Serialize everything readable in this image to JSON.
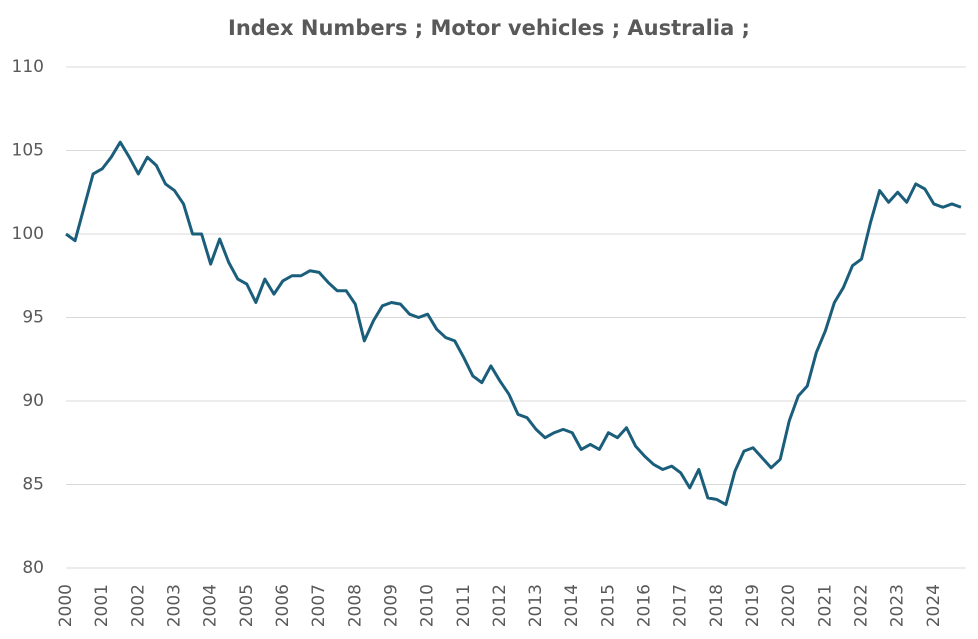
{
  "chart_data": {
    "type": "line",
    "title": "Index Numbers ;  Motor vehicles ;  Australia ;",
    "categories": [
      "2000",
      null,
      null,
      null,
      "2001",
      null,
      null,
      null,
      "2002",
      null,
      null,
      null,
      "2003",
      null,
      null,
      null,
      "2004",
      null,
      null,
      null,
      "2005",
      null,
      null,
      null,
      "2006",
      null,
      null,
      null,
      "2007",
      null,
      null,
      null,
      "2008",
      null,
      null,
      null,
      "2009",
      null,
      null,
      null,
      "2010",
      null,
      null,
      null,
      "2011",
      null,
      null,
      null,
      "2012",
      null,
      null,
      null,
      "2013",
      null,
      null,
      null,
      "2014",
      null,
      null,
      null,
      "2015",
      null,
      null,
      null,
      "2016",
      null,
      null,
      null,
      "2017",
      null,
      null,
      null,
      "2018",
      null,
      null,
      null,
      "2019",
      null,
      null,
      null,
      "2020",
      null,
      null,
      null,
      "2021",
      null,
      null,
      null,
      "2022",
      null,
      null,
      null,
      "2023",
      null,
      null,
      null,
      "2024",
      null,
      null,
      null
    ],
    "series": [
      {
        "name": "Motor vehicles",
        "color": "#1b5e7b",
        "values": [
          100.0,
          99.6,
          101.6,
          103.6,
          103.9,
          104.6,
          105.5,
          104.6,
          103.6,
          104.6,
          104.1,
          103.0,
          102.6,
          101.8,
          100.0,
          100.0,
          98.2,
          99.7,
          98.3,
          97.3,
          97.0,
          95.9,
          97.3,
          96.4,
          97.2,
          97.5,
          97.5,
          97.8,
          97.7,
          97.1,
          96.6,
          96.6,
          95.8,
          93.6,
          94.8,
          95.7,
          95.9,
          95.8,
          95.2,
          95.0,
          95.2,
          94.3,
          93.8,
          93.6,
          92.6,
          91.5,
          91.1,
          92.1,
          91.2,
          90.4,
          89.2,
          89.0,
          88.3,
          87.8,
          88.1,
          88.3,
          88.1,
          87.1,
          87.4,
          87.1,
          88.1,
          87.8,
          88.4,
          87.3,
          86.7,
          86.2,
          85.9,
          86.1,
          85.7,
          84.8,
          85.9,
          84.2,
          84.1,
          83.8,
          85.8,
          87.0,
          87.2,
          86.6,
          86.0,
          86.5,
          88.8,
          90.3,
          90.9,
          92.9,
          94.2,
          95.9,
          96.8,
          98.1,
          98.5,
          100.7,
          102.6,
          101.9,
          102.5,
          101.9,
          103.0,
          102.7,
          101.8,
          101.6,
          101.8,
          101.6
        ]
      }
    ],
    "ylim": [
      80,
      110
    ],
    "yticks": [
      80,
      85,
      90,
      95,
      100,
      105,
      110
    ],
    "grid": true
  }
}
